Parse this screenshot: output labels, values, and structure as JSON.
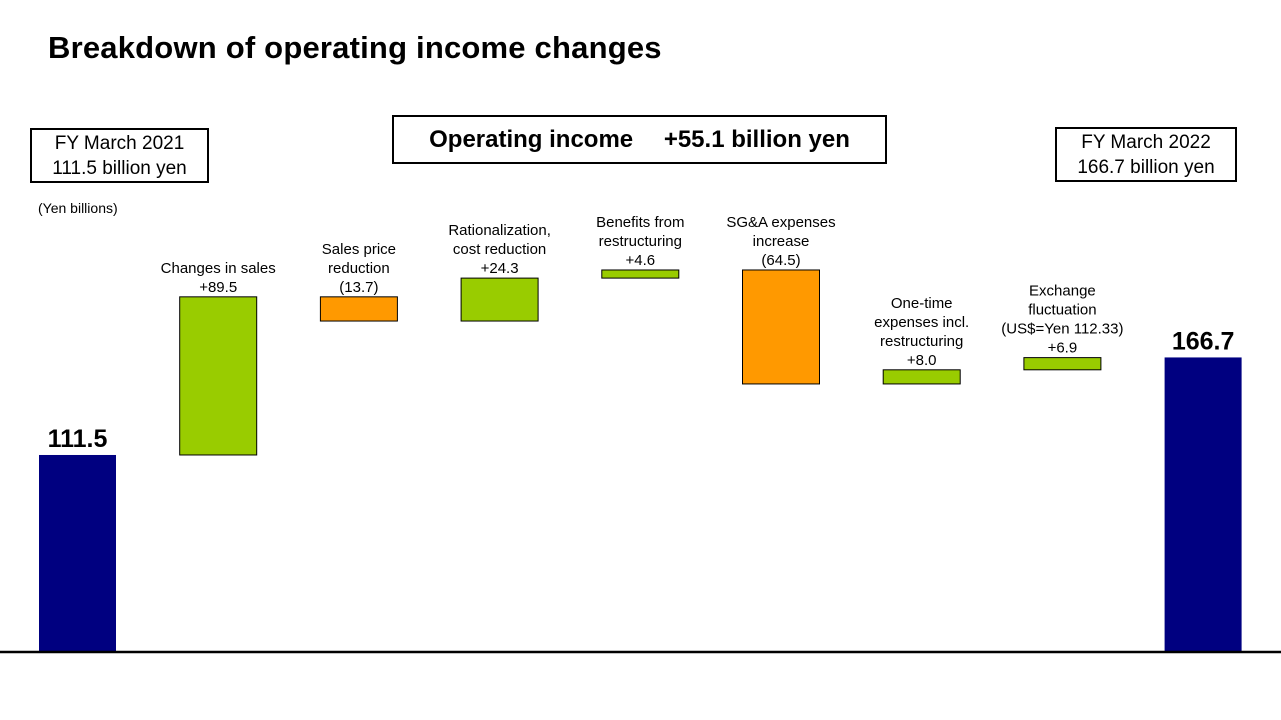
{
  "title": "Breakdown of operating income changes",
  "start_box": {
    "line1": "FY March 2021",
    "line2": "111.5 billion yen"
  },
  "end_box": {
    "line1": "FY March 2022",
    "line2": "166.7 billion yen"
  },
  "total_box": {
    "text": "Operating income  +55.1 billion yen"
  },
  "units_label": "(Yen billions)",
  "colors": {
    "total": "#000080",
    "increase": "#99cc00",
    "decrease": "#ff9900"
  },
  "chart_data": {
    "type": "bar",
    "subtype": "waterfall",
    "title": "Breakdown of operating income changes",
    "unit": "(Yen billions)",
    "ylim": [
      0,
      166.7
    ],
    "steps": [
      {
        "kind": "total",
        "value": 111.5,
        "label_lines": [],
        "value_label": "111.5"
      },
      {
        "kind": "increase",
        "value": 89.5,
        "label_lines": [
          "Changes in sales"
        ],
        "value_label": "+89.5"
      },
      {
        "kind": "decrease",
        "value": -13.7,
        "label_lines": [
          "Sales price",
          "reduction"
        ],
        "value_label": "(13.7)"
      },
      {
        "kind": "increase",
        "value": 24.3,
        "label_lines": [
          "Rationalization,",
          "cost reduction"
        ],
        "value_label": "+24.3"
      },
      {
        "kind": "increase",
        "value": 4.6,
        "label_lines": [
          "Benefits from",
          "restructuring"
        ],
        "value_label": "+4.6"
      },
      {
        "kind": "decrease",
        "value": -64.5,
        "label_lines": [
          "SG&A expenses",
          "increase"
        ],
        "value_label": "(64.5)"
      },
      {
        "kind": "increase",
        "value": 8.0,
        "label_lines": [
          "One-time",
          "expenses incl.",
          "restructuring"
        ],
        "value_label": "+8.0"
      },
      {
        "kind": "increase",
        "value": 6.9,
        "label_lines": [
          "Exchange",
          "fluctuation",
          "(US$=Yen 112.33)"
        ],
        "value_label": "+6.9"
      },
      {
        "kind": "total",
        "value": 166.7,
        "label_lines": [],
        "value_label": "166.7"
      }
    ]
  }
}
